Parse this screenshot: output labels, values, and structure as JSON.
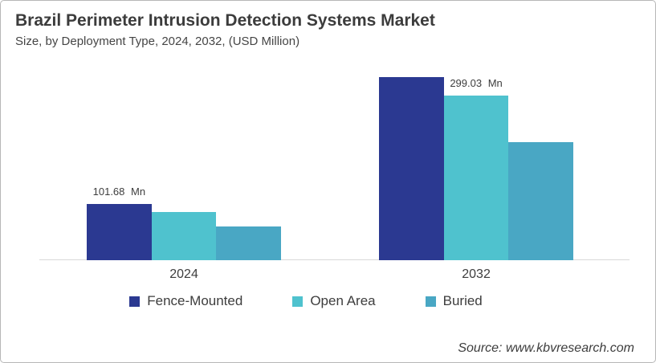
{
  "card": {
    "title": "Brazil Perimeter Intrusion Detection Systems Market",
    "subtitle": "Size, by Deployment Type, 2024, 2032, (USD Million)",
    "source": "Source: www.kbvresearch.com"
  },
  "colors": {
    "fence_mounted": "#2B3991",
    "open_area": "#4FC2CE",
    "buried": "#49A7C4",
    "axis_line": "#D9D9D9",
    "text": "#3D3D3D",
    "border": "#B7B7B7"
  },
  "chart_data": {
    "type": "bar",
    "title": "Brazil Perimeter Intrusion Detection Systems Market",
    "subtitle": "Size, by Deployment Type, 2024, 2032, (USD Million)",
    "unit": "USD Million",
    "categories": [
      "2024",
      "2032"
    ],
    "series": [
      {
        "name": "Fence-Mounted",
        "color": "#2B3991",
        "values": [
          101.68,
          332
        ]
      },
      {
        "name": "Open Area",
        "color": "#4FC2CE",
        "values": [
          87,
          299.03
        ]
      },
      {
        "name": "Buried",
        "color": "#49A7C4",
        "values": [
          62,
          215
        ]
      }
    ],
    "value_labels": [
      {
        "category_index": 0,
        "series_index": 0,
        "text": "101.68 Mn"
      },
      {
        "category_index": 1,
        "series_index": 1,
        "text": "299.03 Mn"
      }
    ],
    "ylim": [
      0,
      350
    ],
    "grid": false,
    "axis_lines": "x-only",
    "legend_position": "bottom"
  }
}
